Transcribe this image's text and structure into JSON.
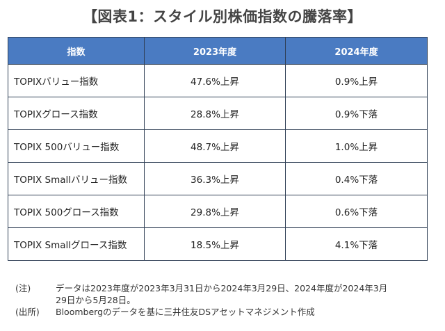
{
  "title": "【図表1：スタイル別株価指数の騰落率】",
  "table": {
    "headers": [
      "指数",
      "2023年度",
      "2024年度"
    ],
    "rows": [
      [
        "TOPIXバリュー指数",
        "47.6%上昇",
        "0.9%上昇"
      ],
      [
        "TOPIXグロース指数",
        "28.8%上昇",
        "0.9%下落"
      ],
      [
        "TOPIX 500バリュー指数",
        "48.7%上昇",
        "1.0%上昇"
      ],
      [
        "TOPIX Smallバリュー指数",
        "36.3%上昇",
        "0.4%下落"
      ],
      [
        "TOPIX 500グロース指数",
        "29.8%上昇",
        "0.6%下落"
      ],
      [
        "TOPIX Smallグロース指数",
        "18.5%上昇",
        "4.1%下落"
      ]
    ]
  },
  "notes": {
    "note_tag": "(注)",
    "note_line1": "データは2023年度が2023年3月31日から2024年3月29日、2024年度が2024年3月",
    "note_line2": "29日から5月28日。",
    "source_tag": "(出所)",
    "source_text": "Bloombergのデータを基に三井住友DSアセットマネジメント作成"
  }
}
